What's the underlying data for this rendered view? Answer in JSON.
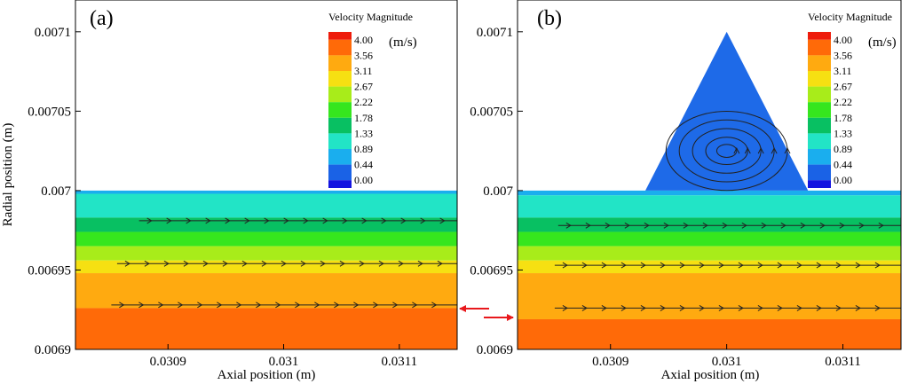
{
  "figure": {
    "aria": "Velocity magnitude contours (a) without and (b) with a triangular groove"
  },
  "colors": {
    "arrow": "#e8181c",
    "axis": "#000000",
    "streamline": "#222222",
    "background": "#ffffff"
  },
  "chart_data": [
    {
      "type": "heatmap",
      "panel_label": "(a)",
      "xlabel": "Axial position (m)",
      "ylabel": "Radial position (m)",
      "xlim": [
        0.03082,
        0.03115
      ],
      "ylim": [
        0.0069,
        0.00712
      ],
      "x_ticks": [
        0.0309,
        0.031,
        0.0311
      ],
      "x_tick_labels": [
        "0.0309",
        "0.031",
        "0.0311"
      ],
      "y_ticks": [
        0.0069,
        0.00695,
        0.007,
        0.00705,
        0.0071
      ],
      "y_tick_labels": [
        "0.0069",
        "0.00695",
        "0.007",
        "0.00705",
        "0.0071"
      ],
      "channel_top": 0.007,
      "bands": [
        {
          "y0": 0.006998,
          "y1": 0.007,
          "value": 0.89
        },
        {
          "y0": 0.006983,
          "y1": 0.006998,
          "value": 1.33
        },
        {
          "y0": 0.006974,
          "y1": 0.006983,
          "value": 1.78
        },
        {
          "y0": 0.006965,
          "y1": 0.006974,
          "value": 2.22
        },
        {
          "y0": 0.006956,
          "y1": 0.006965,
          "value": 2.67
        },
        {
          "y0": 0.006948,
          "y1": 0.006956,
          "value": 3.11
        },
        {
          "y0": 0.006926,
          "y1": 0.006948,
          "value": 3.56
        },
        {
          "y0": 0.0069,
          "y1": 0.006926,
          "value": 4.0
        }
      ],
      "streamlines": [
        {
          "y": 0.006981,
          "x_start": 0.030875,
          "x_end": 0.03115
        },
        {
          "y": 0.006954,
          "x_start": 0.030856,
          "x_end": 0.03115
        },
        {
          "y": 0.006928,
          "x_start": 0.030851,
          "x_end": 0.03115
        }
      ],
      "legend": {
        "title": "Velocity Magnitude",
        "unit": "(m/s)",
        "levels": [
          "4.00",
          "3.56",
          "3.11",
          "2.67",
          "2.22",
          "1.78",
          "1.33",
          "0.89",
          "0.44",
          "0.00"
        ],
        "colors": [
          "#ee1c0c",
          "#ff6a08",
          "#ffaa10",
          "#f6e012",
          "#a8ec1a",
          "#36e61e",
          "#08c062",
          "#22e4c6",
          "#1aaeee",
          "#1a62e6",
          "#1414e0"
        ]
      }
    },
    {
      "type": "heatmap",
      "panel_label": "(b)",
      "xlabel": "Axial position (m)",
      "ylabel": "",
      "xlim": [
        0.03082,
        0.03115
      ],
      "ylim": [
        0.0069,
        0.00712
      ],
      "x_ticks": [
        0.0309,
        0.031,
        0.0311
      ],
      "x_tick_labels": [
        "0.0309",
        "0.031",
        "0.0311"
      ],
      "y_ticks": [
        0.0069,
        0.00695,
        0.007,
        0.00705,
        0.0071
      ],
      "y_tick_labels": [
        "0.0069",
        "0.00695",
        "0.007",
        "0.00705",
        "0.0071"
      ],
      "channel_top": 0.007,
      "groove": {
        "x_left": 0.03093,
        "x_apex": 0.031,
        "x_right": 0.03107,
        "y_apex": 0.0071,
        "value": 0.44
      },
      "bands": [
        {
          "y0": 0.006997,
          "y1": 0.007,
          "value": 0.89
        },
        {
          "y0": 0.006983,
          "y1": 0.006997,
          "value": 1.33
        },
        {
          "y0": 0.006974,
          "y1": 0.006983,
          "value": 1.78
        },
        {
          "y0": 0.006965,
          "y1": 0.006974,
          "value": 2.22
        },
        {
          "y0": 0.006956,
          "y1": 0.006965,
          "value": 2.67
        },
        {
          "y0": 0.006948,
          "y1": 0.006956,
          "value": 3.11
        },
        {
          "y0": 0.006919,
          "y1": 0.006948,
          "value": 3.56
        },
        {
          "y0": 0.0069,
          "y1": 0.006919,
          "value": 4.0
        }
      ],
      "streamlines": [
        {
          "y": 0.006978,
          "x_start": 0.030855,
          "x_end": 0.03115
        },
        {
          "y": 0.006953,
          "x_start": 0.030852,
          "x_end": 0.03115
        },
        {
          "y": 0.006926,
          "x_start": 0.030852,
          "x_end": 0.03115
        }
      ],
      "vortex": {
        "center_x": 0.031,
        "center_y": 0.007025,
        "radii": [
          5.5e-05,
          4.3e-05,
          3.1e-05,
          1.9e-05,
          9e-06
        ]
      },
      "legend": {
        "title": "Velocity Magnitude",
        "unit": "(m/s)",
        "levels": [
          "4.00",
          "3.56",
          "3.11",
          "2.67",
          "2.22",
          "1.78",
          "1.33",
          "0.89",
          "0.44",
          "0.00"
        ],
        "colors": [
          "#ee1c0c",
          "#ff6a08",
          "#ffaa10",
          "#f6e012",
          "#a8ec1a",
          "#36e61e",
          "#08c062",
          "#22e4c6",
          "#1aaeee",
          "#1a62e6",
          "#1414e0"
        ]
      }
    }
  ]
}
